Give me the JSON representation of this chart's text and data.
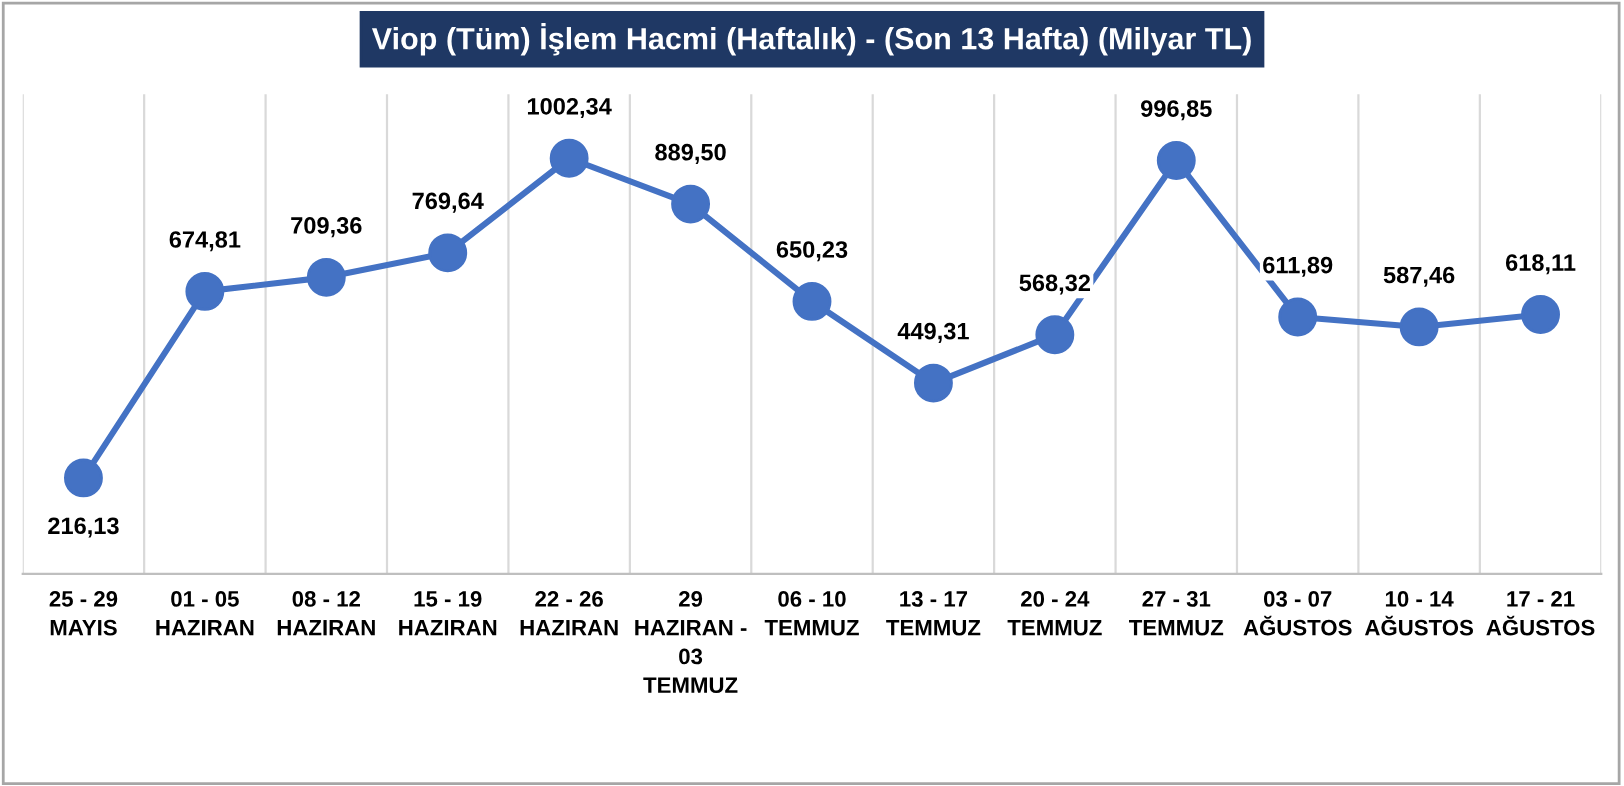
{
  "chart_data": {
    "type": "line",
    "title": "Viop (Tüm) İşlem Hacmi (Haftalık) - (Son 13 Hafta) (Milyar TL)",
    "categories": [
      "25 - 29\nMAYIS",
      "01 - 05\nHAZIRAN",
      "08 - 12\nHAZIRAN",
      "15 - 19\nHAZIRAN",
      "22 - 26\nHAZIRAN",
      "29\nHAZIRAN -\n03\nTEMMUZ",
      "06 - 10\nTEMMUZ",
      "13 - 17\nTEMMUZ",
      "20 - 24\nTEMMUZ",
      "27 - 31\nTEMMUZ",
      "03 - 07\nAĞUSTOS",
      "10 - 14\nAĞUSTOS",
      "17 - 21\nAĞUSTOS"
    ],
    "series": [
      {
        "color": "#4472c4",
        "values": [
          216.13,
          674.81,
          709.36,
          769.64,
          1002.34,
          889.5,
          650.23,
          449.31,
          568.32,
          996.85,
          611.89,
          587.46,
          618.11
        ],
        "value_labels": [
          "216,13",
          "674,81",
          "709,36",
          "769,64",
          "1002,34",
          "889,50",
          "650,23",
          "449,31",
          "568,32",
          "996,85",
          "611,89",
          "587,46",
          "618,11"
        ]
      }
    ],
    "marker": "circle",
    "line_style": "solid",
    "grid": "x",
    "legend": false,
    "tick_labels": "x"
  }
}
